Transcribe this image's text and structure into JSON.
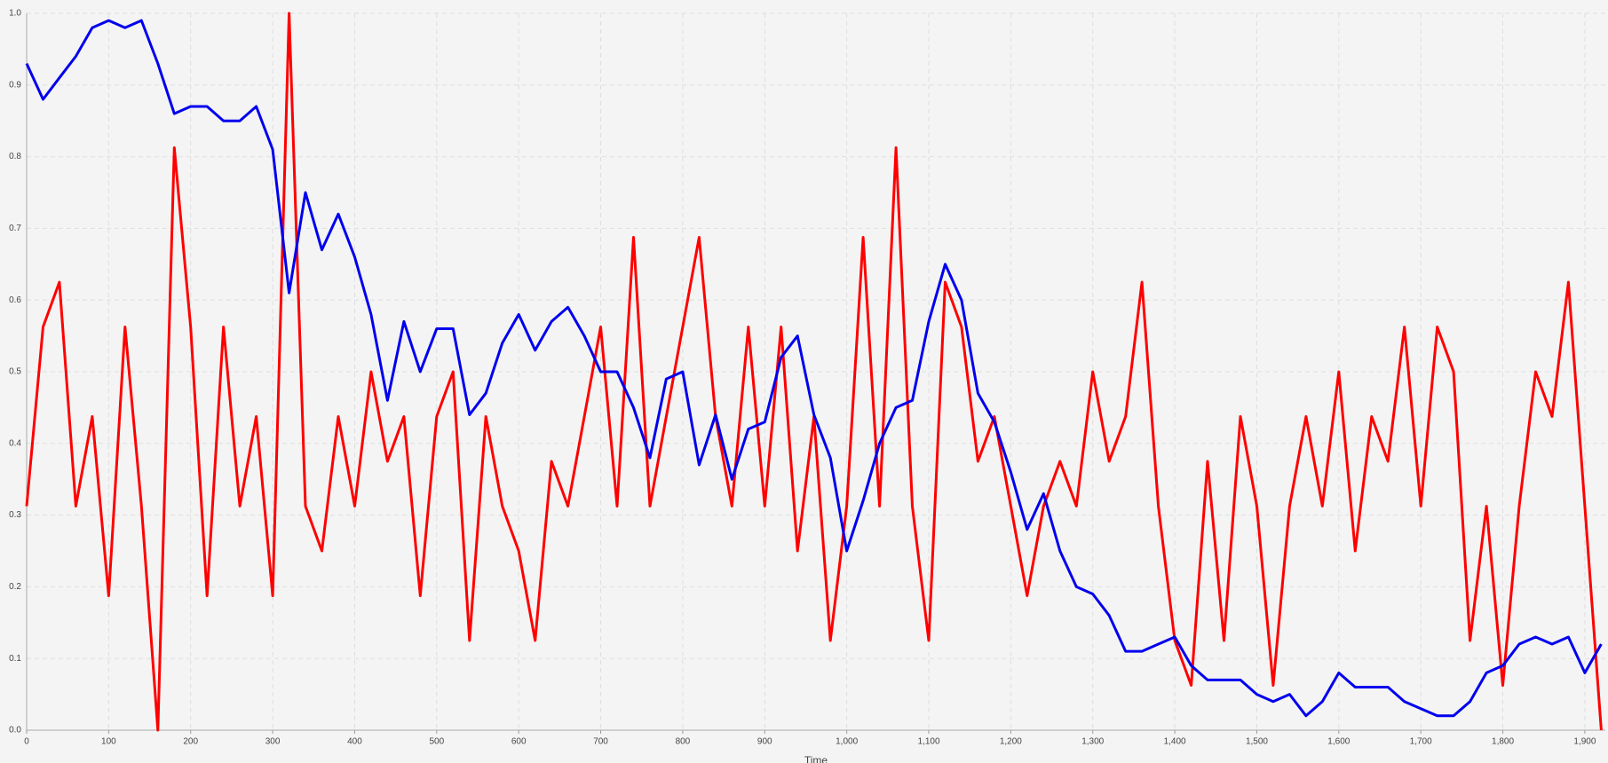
{
  "chart_data": {
    "type": "line",
    "x_label": "Time",
    "x": [
      0,
      20,
      40,
      60,
      80,
      100,
      120,
      140,
      160,
      180,
      200,
      220,
      240,
      260,
      280,
      300,
      320,
      340,
      360,
      380,
      400,
      420,
      440,
      460,
      480,
      500,
      520,
      540,
      560,
      580,
      600,
      620,
      640,
      660,
      680,
      700,
      720,
      740,
      760,
      780,
      800,
      820,
      840,
      860,
      880,
      900,
      920,
      940,
      960,
      980,
      1000,
      1020,
      1040,
      1060,
      1080,
      1100,
      1120,
      1140,
      1160,
      1180,
      1200,
      1220,
      1240,
      1260,
      1280,
      1300,
      1320,
      1340,
      1360,
      1380,
      1400,
      1420,
      1440,
      1460,
      1480,
      1500,
      1520,
      1540,
      1560,
      1580,
      1600,
      1620,
      1640,
      1660,
      1680,
      1700,
      1720,
      1740,
      1760,
      1780,
      1800,
      1820,
      1840,
      1860,
      1880,
      1900,
      1920
    ],
    "series": [
      {
        "color": "#ff0000",
        "values": [
          0.3125,
          0.5625,
          0.625,
          0.3125,
          0.4375,
          0.1875,
          0.5625,
          0.3125,
          0.0,
          0.8125,
          0.5625,
          0.1875,
          0.5625,
          0.3125,
          0.4375,
          0.1875,
          1.0,
          0.3125,
          0.25,
          0.4375,
          0.3125,
          0.5,
          0.375,
          0.4375,
          0.1875,
          0.4375,
          0.5,
          0.125,
          0.4375,
          0.3125,
          0.25,
          0.125,
          0.375,
          0.3125,
          0.4375,
          0.5625,
          0.3125,
          0.6875,
          0.3125,
          0.4375,
          0.5625,
          0.6875,
          0.4375,
          0.3125,
          0.5625,
          0.3125,
          0.5625,
          0.25,
          0.4375,
          0.125,
          0.3125,
          0.6875,
          0.3125,
          0.8125,
          0.3125,
          0.125,
          0.625,
          0.5625,
          0.375,
          0.4375,
          0.3125,
          0.1875,
          0.3125,
          0.375,
          0.3125,
          0.5,
          0.375,
          0.4375,
          0.625,
          0.3125,
          0.125,
          0.0625,
          0.375,
          0.125,
          0.4375,
          0.3125,
          0.0625,
          0.3125,
          0.4375,
          0.3125,
          0.5,
          0.25,
          0.4375,
          0.375,
          0.5625,
          0.3125,
          0.5625,
          0.5,
          0.125,
          0.3125,
          0.0625,
          0.3125,
          0.5,
          0.4375,
          0.625,
          0.3125,
          0.0
        ]
      },
      {
        "color": "#0000ee",
        "values": [
          0.93,
          0.88,
          0.91,
          0.94,
          0.98,
          0.99,
          0.98,
          0.99,
          0.93,
          0.86,
          0.87,
          0.87,
          0.85,
          0.85,
          0.87,
          0.81,
          0.61,
          0.75,
          0.67,
          0.72,
          0.66,
          0.58,
          0.46,
          0.57,
          0.5,
          0.56,
          0.56,
          0.44,
          0.47,
          0.54,
          0.58,
          0.53,
          0.57,
          0.59,
          0.55,
          0.5,
          0.5,
          0.45,
          0.38,
          0.49,
          0.5,
          0.37,
          0.44,
          0.35,
          0.42,
          0.43,
          0.52,
          0.55,
          0.44,
          0.38,
          0.25,
          0.32,
          0.4,
          0.45,
          0.46,
          0.57,
          0.65,
          0.6,
          0.47,
          0.43,
          0.36,
          0.28,
          0.33,
          0.25,
          0.2,
          0.19,
          0.16,
          0.11,
          0.11,
          0.12,
          0.13,
          0.09,
          0.07,
          0.07,
          0.07,
          0.05,
          0.04,
          0.05,
          0.02,
          0.04,
          0.08,
          0.06,
          0.06,
          0.06,
          0.04,
          0.03,
          0.02,
          0.02,
          0.04,
          0.08,
          0.09,
          0.12,
          0.13,
          0.12,
          0.13,
          0.08,
          0.12
        ]
      }
    ],
    "xlim": [
      0,
      1925
    ],
    "xticks": [
      0,
      100,
      200,
      300,
      400,
      500,
      600,
      700,
      800,
      900,
      {
        "value": 1000,
        "label": "1,000"
      },
      {
        "value": 1100,
        "label": "1,100"
      },
      {
        "value": 1200,
        "label": "1,200"
      },
      {
        "value": 1300,
        "label": "1,300"
      },
      {
        "value": 1400,
        "label": "1,400"
      },
      {
        "value": 1500,
        "label": "1,500"
      },
      {
        "value": 1600,
        "label": "1,600"
      },
      {
        "value": 1700,
        "label": "1,700"
      },
      {
        "value": 1800,
        "label": "1,800"
      },
      {
        "value": 1900,
        "label": "1,900"
      }
    ],
    "ylim": [
      0,
      1
    ],
    "yticks": [
      {
        "value": 0,
        "label": "0.0"
      },
      0.1,
      0.2,
      0.3,
      0.4,
      0.5,
      0.6,
      0.7,
      0.8,
      0.9,
      {
        "value": 1,
        "label": "1.0"
      }
    ],
    "grid": true
  }
}
